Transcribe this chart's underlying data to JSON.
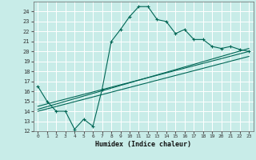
{
  "xlabel": "Humidex (Indice chaleur)",
  "bg_color": "#c8ece8",
  "grid_color": "#ffffff",
  "line_color": "#006655",
  "xlim": [
    -0.5,
    23.5
  ],
  "ylim": [
    12,
    25
  ],
  "xticks": [
    0,
    1,
    2,
    3,
    4,
    5,
    6,
    7,
    8,
    9,
    10,
    11,
    12,
    13,
    14,
    15,
    16,
    17,
    18,
    19,
    20,
    21,
    22,
    23
  ],
  "yticks": [
    12,
    13,
    14,
    15,
    16,
    17,
    18,
    19,
    20,
    21,
    22,
    23,
    24
  ],
  "main_curve": [
    [
      0,
      16.5
    ],
    [
      1,
      15.0
    ],
    [
      2,
      14.0
    ],
    [
      3,
      14.0
    ],
    [
      4,
      12.2
    ],
    [
      5,
      13.2
    ],
    [
      6,
      12.5
    ],
    [
      7,
      16.2
    ],
    [
      8,
      21.0
    ],
    [
      9,
      22.2
    ],
    [
      10,
      23.5
    ],
    [
      11,
      24.5
    ],
    [
      12,
      24.5
    ],
    [
      13,
      23.2
    ],
    [
      14,
      23.0
    ],
    [
      15,
      21.8
    ],
    [
      16,
      22.2
    ],
    [
      17,
      21.2
    ],
    [
      18,
      21.2
    ],
    [
      19,
      20.5
    ],
    [
      20,
      20.3
    ],
    [
      21,
      20.5
    ],
    [
      22,
      20.2
    ],
    [
      23,
      20.0
    ]
  ],
  "line1": [
    [
      0,
      14.2
    ],
    [
      23,
      20.3
    ]
  ],
  "line2": [
    [
      0,
      14.0
    ],
    [
      23,
      19.5
    ]
  ],
  "line3": [
    [
      0,
      14.5
    ],
    [
      23,
      20.0
    ]
  ]
}
